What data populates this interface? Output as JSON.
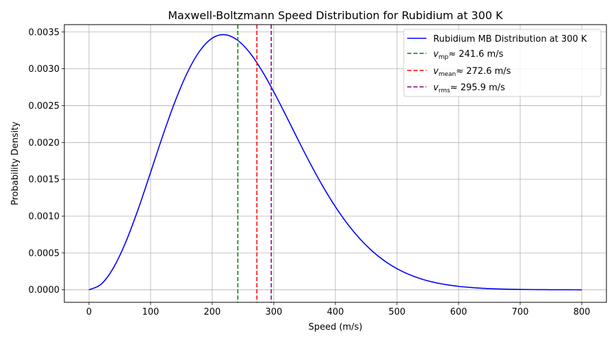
{
  "chart_data": {
    "type": "line",
    "title": "Maxwell-Boltzmann Speed Distribution for Rubidium at 300 K",
    "xlabel": "Speed (m/s)",
    "ylabel": "Probability Density",
    "xlim": [
      -40,
      840
    ],
    "ylim": [
      -0.00017,
      0.0036
    ],
    "xticks": [
      0,
      100,
      200,
      300,
      400,
      500,
      600,
      700,
      800
    ],
    "xtick_labels": [
      "0",
      "100",
      "200",
      "300",
      "400",
      "500",
      "600",
      "700",
      "800"
    ],
    "yticks": [
      0.0,
      0.0005,
      0.001,
      0.0015,
      0.002,
      0.0025,
      0.003,
      0.0035
    ],
    "ytick_labels": [
      "0.0000",
      "0.0005",
      "0.0010",
      "0.0015",
      "0.0020",
      "0.0025",
      "0.0030",
      "0.0035"
    ],
    "grid": true,
    "legend_position": "top-right",
    "series": [
      {
        "name": "Rubidium MB Distribution at 300 K",
        "color": "#0000ff",
        "x": [
          0,
          20,
          40,
          60,
          80,
          100,
          120,
          140,
          160,
          180,
          200,
          220,
          240,
          260,
          280,
          300,
          320,
          340,
          360,
          380,
          400,
          420,
          440,
          460,
          480,
          500,
          520,
          540,
          560,
          580,
          600,
          620,
          640,
          660,
          680,
          700,
          720,
          740,
          760,
          780,
          800
        ],
        "y": [
          0.0,
          7.8e-05,
          0.000303,
          0.000654,
          0.001098,
          0.001594,
          0.002097,
          0.002562,
          0.002954,
          0.003244,
          0.003416,
          0.003464,
          0.003396,
          0.00323,
          0.002985,
          0.002688,
          0.002362,
          0.002027,
          0.001702,
          0.0014,
          0.001128,
          0.000891,
          0.00069,
          0.000524,
          0.000391,
          0.000287,
          0.000207,
          0.000146,
          0.000102,
          7e-05,
          4.7e-05,
          3.1e-05,
          2e-05,
          1.3e-05,
          8e-06,
          5e-06,
          3e-06,
          2e-06,
          1e-06,
          1e-06,
          0.0
        ]
      }
    ],
    "vlines": [
      {
        "name": "v_mp",
        "label_main": "v",
        "label_sub": "mp",
        "label_value": "≈ 241.6 m/s",
        "x": 241.6,
        "color": "#008000"
      },
      {
        "name": "v_mean",
        "label_main": "v",
        "label_sub": "mean",
        "label_value": "≈ 272.6 m/s",
        "x": 272.6,
        "color": "#ff0000"
      },
      {
        "name": "v_rms",
        "label_main": "v",
        "label_sub": "rms",
        "label_value": "≈ 295.9 m/s",
        "x": 295.9,
        "color": "#800080"
      }
    ]
  }
}
